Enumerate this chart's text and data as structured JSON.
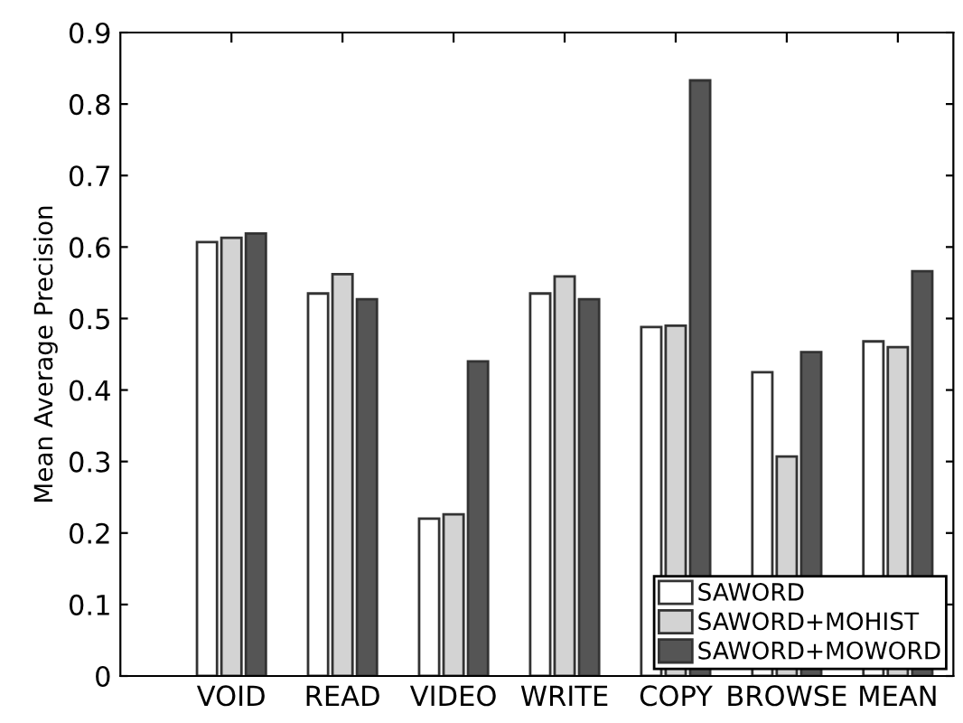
{
  "chart_data": {
    "type": "bar",
    "ylabel": "Mean Average Precision",
    "categories": [
      "VOID",
      "READ",
      "VIDEO",
      "WRITE",
      "COPY",
      "BROWSE",
      "MEAN"
    ],
    "series": [
      {
        "name": "SAWORD",
        "color": "#ffffff",
        "values": [
          0.607,
          0.535,
          0.22,
          0.535,
          0.488,
          0.425,
          0.468
        ]
      },
      {
        "name": "SAWORD+MOHIST",
        "color": "#d3d3d3",
        "values": [
          0.613,
          0.562,
          0.226,
          0.559,
          0.49,
          0.307,
          0.46
        ]
      },
      {
        "name": "SAWORD+MOWORD",
        "color": "#555555",
        "values": [
          0.619,
          0.527,
          0.44,
          0.527,
          0.833,
          0.453,
          0.566
        ]
      }
    ],
    "ylim": [
      0,
      0.9
    ],
    "yticks": [
      0,
      0.1,
      0.2,
      0.3,
      0.4,
      0.5,
      0.6,
      0.7,
      0.8,
      0.9
    ],
    "grid": false,
    "legend": "bottom right"
  }
}
